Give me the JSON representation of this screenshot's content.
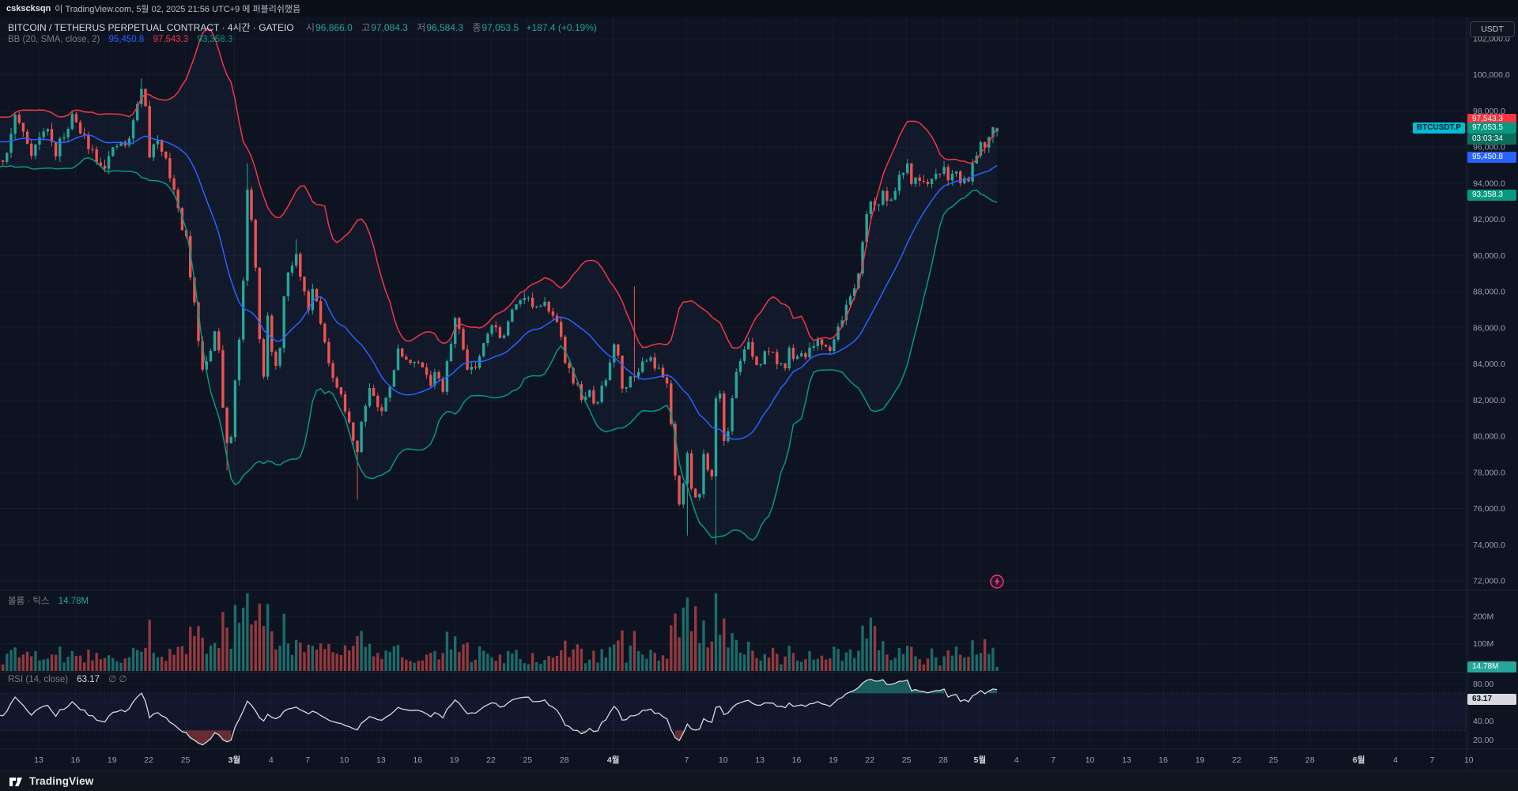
{
  "publish_bar": {
    "user": "cskscksqn",
    "text": "이 TradingView.com, 5월 02, 2025 21:56 UTC+9 에 퍼블리쉬했음"
  },
  "header": {
    "title": "BITCOIN / TETHERUS PERPETUAL CONTRACT · 4시간 · GATEIO",
    "ohlc": {
      "o_label": "시",
      "o": "96,866.0",
      "h_label": "고",
      "h": "97,084.3",
      "l_label": "저",
      "l": "96,584.3",
      "c_label": "종",
      "c": "97,053.5",
      "change": "+187.4 (+0.19%)"
    },
    "bb": {
      "label": "BB (20, SMA, close, 2)",
      "basis": "95,450.8",
      "upper": "97,543.3",
      "lower": "93,358.3"
    }
  },
  "volume_legend": {
    "label": "볼륨 · 틱스",
    "value": "14.78M"
  },
  "rsi_legend": {
    "label": "RSI (14, close)",
    "value": "63.17",
    "hidden": "∅ ∅"
  },
  "price_axis": {
    "currency": "USDT",
    "min": 72000,
    "max": 102000,
    "step": 2000
  },
  "volume_axis": {
    "labels": [
      {
        "label": "200M",
        "value": 200
      },
      {
        "label": "100M",
        "value": 100
      }
    ]
  },
  "rsi_axis": {
    "labels": [
      {
        "label": "80.00",
        "value": 80
      },
      {
        "label": "40.00",
        "value": 40
      },
      {
        "label": "20.00",
        "value": 20
      }
    ]
  },
  "badges": {
    "bb_upper": {
      "text": "97,543.3",
      "value": 97543.3
    },
    "symbol": {
      "text": "BTCUSDT.P"
    },
    "last_price": {
      "text": "97,053.5",
      "value": 97053.5
    },
    "countdown": {
      "text": "03:03:34"
    },
    "bb_basis": {
      "text": "95,450.8",
      "value": 95450.8
    },
    "bb_lower": {
      "text": "93,358.3",
      "value": 93358.3
    },
    "volume": {
      "text": "14.78M",
      "value": 14.78
    },
    "rsi": {
      "text": "63.17",
      "value": 63.17
    }
  },
  "time_axis": [
    {
      "label": "13",
      "day": 0
    },
    {
      "label": "16",
      "day": 3
    },
    {
      "label": "19",
      "day": 6
    },
    {
      "label": "22",
      "day": 9
    },
    {
      "label": "25",
      "day": 12
    },
    {
      "label": "3월",
      "day": 16,
      "month": true
    },
    {
      "label": "4",
      "day": 19
    },
    {
      "label": "7",
      "day": 22
    },
    {
      "label": "10",
      "day": 25
    },
    {
      "label": "13",
      "day": 28
    },
    {
      "label": "16",
      "day": 31
    },
    {
      "label": "19",
      "day": 34
    },
    {
      "label": "22",
      "day": 37
    },
    {
      "label": "25",
      "day": 40
    },
    {
      "label": "28",
      "day": 43
    },
    {
      "label": "4월",
      "day": 47,
      "month": true
    },
    {
      "label": "7",
      "day": 53
    },
    {
      "label": "10",
      "day": 56
    },
    {
      "label": "13",
      "day": 59
    },
    {
      "label": "16",
      "day": 62
    },
    {
      "label": "19",
      "day": 65
    },
    {
      "label": "22",
      "day": 68
    },
    {
      "label": "25",
      "day": 71
    },
    {
      "label": "28",
      "day": 74
    },
    {
      "label": "5월",
      "day": 77,
      "month": true
    },
    {
      "label": "4",
      "day": 80
    },
    {
      "label": "7",
      "day": 83
    },
    {
      "label": "10",
      "day": 86
    },
    {
      "label": "13",
      "day": 89
    },
    {
      "label": "16",
      "day": 92
    },
    {
      "label": "19",
      "day": 95
    },
    {
      "label": "22",
      "day": 98
    },
    {
      "label": "25",
      "day": 101
    },
    {
      "label": "28",
      "day": 104
    },
    {
      "label": "6월",
      "day": 108,
      "month": true
    },
    {
      "label": "4",
      "day": 111
    },
    {
      "label": "7",
      "day": 114
    },
    {
      "label": "10",
      "day": 117
    }
  ],
  "footer": {
    "logo_text": "TradingView"
  },
  "colors": {
    "bg": "#0d1321",
    "up": "#26a69a",
    "down": "#ef5350",
    "bb_upper": "#f23645",
    "bb_basis": "#2962ff",
    "bb_lower": "#089981",
    "rsi_line": "#d7d9e0",
    "volume_value": "#26a69a",
    "axis_text": "#9aa0ae",
    "month_text": "#d3d6dd",
    "title_text": "#d6d9e0",
    "badge_upper_bg": "#f23645",
    "badge_symbol_bg": "#00bcd4",
    "badge_price_bg": "#089981",
    "badge_countdown_bg": "#0b6e5d",
    "badge_basis_bg": "#2962ff",
    "badge_lower_bg": "#089981",
    "badge_volume_bg": "#26a69a",
    "badge_rsi_bg": "#d8dadf",
    "accent_pink": "#f23674"
  },
  "chart_data": {
    "type": "candlestick",
    "title": "BTCUSDT.P · 4h · GATEIO with BB(20,SMA,close,2), Volume, RSI(14)",
    "panes": [
      "price+bollinger",
      "volume",
      "rsi"
    ],
    "ylim_price": [
      72000,
      102000
    ],
    "ylim_volume_m": [
      0,
      300
    ],
    "ylim_rsi": [
      0,
      100
    ],
    "seed": 11,
    "price_anchors": [
      [
        -10.6,
        95000
      ],
      [
        -10,
        94300
      ],
      [
        -9.3,
        95600
      ],
      [
        -8.6,
        96600
      ],
      [
        -8,
        95900
      ],
      [
        -7.3,
        96900
      ],
      [
        -6.6,
        96100
      ],
      [
        -6,
        97200
      ],
      [
        -5.3,
        97600
      ],
      [
        -4.6,
        96400
      ],
      [
        -4,
        95700
      ],
      [
        -3.3,
        95200
      ],
      [
        -2.6,
        95600
      ],
      [
        -2,
        97800
      ],
      [
        -1.3,
        96900
      ],
      [
        -0.6,
        95800
      ],
      [
        0,
        96400
      ],
      [
        0.7,
        97100
      ],
      [
        1.3,
        95600
      ],
      [
        2,
        96500
      ],
      [
        2.7,
        97900
      ],
      [
        3.3,
        96800
      ],
      [
        4,
        96300
      ],
      [
        4.6,
        95600
      ],
      [
        5.3,
        95000
      ],
      [
        6,
        95600
      ],
      [
        6.7,
        96300
      ],
      [
        7.3,
        96000
      ],
      [
        8,
        98300
      ],
      [
        8.3,
        99300
      ],
      [
        8.7,
        98500
      ],
      [
        9,
        95600
      ],
      [
        9.7,
        96200
      ],
      [
        10.3,
        95900
      ],
      [
        11,
        93700
      ],
      [
        11.7,
        91600
      ],
      [
        12,
        91500
      ],
      [
        12.4,
        88500
      ],
      [
        12.8,
        86900
      ],
      [
        13.2,
        84200
      ],
      [
        13.6,
        83600
      ],
      [
        14,
        84500
      ],
      [
        14.4,
        86000
      ],
      [
        14.8,
        84200
      ],
      [
        15.2,
        80500
      ],
      [
        15.5,
        78900
      ],
      [
        15.8,
        80300
      ],
      [
        16.2,
        84600
      ],
      [
        16.6,
        86000
      ],
      [
        17,
        94100
      ],
      [
        17.3,
        92800
      ],
      [
        17.7,
        90000
      ],
      [
        18,
        86100
      ],
      [
        18.4,
        83500
      ],
      [
        18.8,
        87100
      ],
      [
        19.2,
        83300
      ],
      [
        19.6,
        84000
      ],
      [
        20,
        87400
      ],
      [
        20.4,
        88800
      ],
      [
        21,
        90100
      ],
      [
        21.4,
        89000
      ],
      [
        22,
        87000
      ],
      [
        22.5,
        88500
      ],
      [
        23,
        86800
      ],
      [
        23.5,
        84700
      ],
      [
        24,
        83000
      ],
      [
        24.5,
        82600
      ],
      [
        25,
        81500
      ],
      [
        25.5,
        80800
      ],
      [
        26,
        78800
      ],
      [
        26.3,
        80500
      ],
      [
        27,
        82800
      ],
      [
        27.5,
        82200
      ],
      [
        28,
        81100
      ],
      [
        28.5,
        82300
      ],
      [
        29,
        83700
      ],
      [
        29.5,
        84900
      ],
      [
        30,
        84000
      ],
      [
        30.5,
        84400
      ],
      [
        31,
        83800
      ],
      [
        31.5,
        84100
      ],
      [
        32,
        82700
      ],
      [
        32.5,
        83900
      ],
      [
        33,
        82200
      ],
      [
        33.5,
        84300
      ],
      [
        34,
        86600
      ],
      [
        34.5,
        85600
      ],
      [
        35,
        84000
      ],
      [
        35.5,
        83800
      ],
      [
        36,
        84200
      ],
      [
        36.5,
        85700
      ],
      [
        37,
        86200
      ],
      [
        37.5,
        85900
      ],
      [
        38,
        85300
      ],
      [
        38.5,
        86500
      ],
      [
        39,
        87400
      ],
      [
        39.5,
        87900
      ],
      [
        40,
        87600
      ],
      [
        40.5,
        87100
      ],
      [
        41,
        86900
      ],
      [
        41.5,
        87300
      ],
      [
        42,
        87100
      ],
      [
        42.5,
        86000
      ],
      [
        43,
        84400
      ],
      [
        43.5,
        83600
      ],
      [
        44,
        82700
      ],
      [
        44.5,
        82100
      ],
      [
        45,
        82400
      ],
      [
        45.5,
        81600
      ],
      [
        46,
        82500
      ],
      [
        46.5,
        83300
      ],
      [
        47,
        85100
      ],
      [
        47.3,
        85500
      ],
      [
        47.6,
        83000
      ],
      [
        48,
        82400
      ],
      [
        48.5,
        83900
      ],
      [
        49,
        83200
      ],
      [
        49.5,
        84300
      ],
      [
        50,
        84600
      ],
      [
        50.5,
        83800
      ],
      [
        51,
        83300
      ],
      [
        51.5,
        82900
      ],
      [
        52,
        78300
      ],
      [
        52.5,
        75900
      ],
      [
        53,
        79100
      ],
      [
        53.4,
        77300
      ],
      [
        54,
        76300
      ],
      [
        54.5,
        79800
      ],
      [
        55,
        76700
      ],
      [
        55.3,
        82100
      ],
      [
        55.7,
        82700
      ],
      [
        56,
        79600
      ],
      [
        56.5,
        80700
      ],
      [
        57,
        83400
      ],
      [
        57.5,
        84500
      ],
      [
        58,
        85300
      ],
      [
        58.5,
        84000
      ],
      [
        59,
        83800
      ],
      [
        59.5,
        85000
      ],
      [
        60,
        84500
      ],
      [
        60.5,
        84200
      ],
      [
        61,
        83600
      ],
      [
        61.5,
        84900
      ],
      [
        62,
        84100
      ],
      [
        62.5,
        84400
      ],
      [
        63,
        84700
      ],
      [
        63.5,
        85000
      ],
      [
        64,
        85200
      ],
      [
        64.5,
        84800
      ],
      [
        65,
        85100
      ],
      [
        65.5,
        86200
      ],
      [
        66,
        87200
      ],
      [
        66.5,
        87500
      ],
      [
        67,
        88400
      ],
      [
        67.5,
        91200
      ],
      [
        68,
        93300
      ],
      [
        68.5,
        92500
      ],
      [
        69,
        93600
      ],
      [
        69.5,
        92700
      ],
      [
        70,
        93800
      ],
      [
        70.5,
        94400
      ],
      [
        71,
        94900
      ],
      [
        71.5,
        93900
      ],
      [
        72,
        94500
      ],
      [
        72.5,
        93600
      ],
      [
        73,
        93900
      ],
      [
        73.5,
        94600
      ],
      [
        74,
        94900
      ],
      [
        74.5,
        94300
      ],
      [
        75,
        94700
      ],
      [
        75.5,
        94100
      ],
      [
        76,
        94300
      ],
      [
        76.5,
        95200
      ],
      [
        77,
        96500
      ],
      [
        77.4,
        96200
      ],
      [
        77.8,
        96900
      ],
      [
        78.1,
        97400
      ],
      [
        78.4,
        97053.5
      ]
    ],
    "wick_extremes": [
      {
        "day": 8.3,
        "high": 99800
      },
      {
        "day": 15.5,
        "low": 78100
      },
      {
        "day": 17,
        "high": 95100
      },
      {
        "day": 21,
        "high": 90900
      },
      {
        "day": 26,
        "low": 76500
      },
      {
        "day": 48.8,
        "high": 88300
      },
      {
        "day": 53,
        "low": 74500
      },
      {
        "day": 55.3,
        "low": 74000
      }
    ],
    "volume_spikes_m": [
      [
        12.4,
        120
      ],
      [
        12.8,
        150
      ],
      [
        13.2,
        160
      ],
      [
        14,
        110
      ],
      [
        15.4,
        185
      ],
      [
        16.2,
        120
      ],
      [
        17,
        205
      ],
      [
        17.4,
        150
      ],
      [
        18,
        120
      ],
      [
        21,
        100
      ],
      [
        23,
        88
      ],
      [
        26,
        135
      ],
      [
        27,
        95
      ],
      [
        29,
        85
      ],
      [
        34,
        140
      ],
      [
        36,
        80
      ],
      [
        39,
        88
      ],
      [
        43,
        100
      ],
      [
        44,
        90
      ],
      [
        47.3,
        108
      ],
      [
        48.8,
        150
      ],
      [
        50,
        88
      ],
      [
        52,
        170
      ],
      [
        52.6,
        205
      ],
      [
        53.2,
        265
      ],
      [
        53.6,
        225
      ],
      [
        54.5,
        160
      ],
      [
        55.3,
        230
      ],
      [
        56,
        170
      ],
      [
        57,
        120
      ],
      [
        58,
        100
      ],
      [
        60,
        80
      ],
      [
        63,
        70
      ],
      [
        65,
        78
      ],
      [
        66.5,
        90
      ],
      [
        67.5,
        150
      ],
      [
        68,
        205
      ],
      [
        68.4,
        160
      ],
      [
        69,
        120
      ],
      [
        71,
        100
      ],
      [
        73,
        80
      ],
      [
        75,
        88
      ],
      [
        76.5,
        108
      ],
      [
        77.5,
        118
      ],
      [
        78,
        88
      ]
    ],
    "last": {
      "open": 96866.0,
      "high": 97084.3,
      "low": 96584.3,
      "close": 97053.5,
      "volume_m": 14.78,
      "rsi": 63.17,
      "bb_basis": 95450.8,
      "bb_upper": 97543.3,
      "bb_lower": 93358.3
    },
    "indicators": {
      "bb": {
        "length": 20,
        "mult": 2
      },
      "rsi": {
        "length": 14
      }
    }
  }
}
